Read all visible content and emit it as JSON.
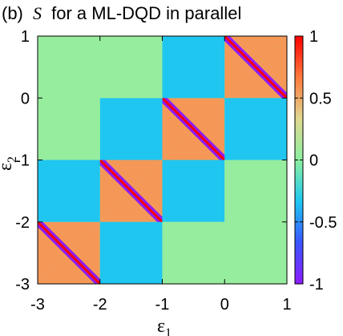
{
  "chart_data": {
    "type": "heatmap",
    "title_prefix": "(b)",
    "title_symbol": "S",
    "title_suffix": "for a ML-DQD in parallel",
    "xlabel": "ε",
    "xlabel_sub": "1",
    "ylabel": "ε",
    "ylabel_sub": "2",
    "xlim": [
      -3,
      1
    ],
    "ylim": [
      -3,
      1
    ],
    "x_ticks": [
      {
        "value": -3,
        "label": "-3"
      },
      {
        "value": -2,
        "label": "-2"
      },
      {
        "value": -1,
        "label": "-1"
      },
      {
        "value": 0,
        "label": "0"
      },
      {
        "value": 1,
        "label": "1"
      }
    ],
    "y_ticks": [
      {
        "value": -3,
        "label": "-3"
      },
      {
        "value": -2,
        "label": "-2"
      },
      {
        "value": -1,
        "label": "-1"
      },
      {
        "value": 0,
        "label": "0"
      },
      {
        "value": 1,
        "label": "1"
      }
    ],
    "colorbar": {
      "range": [
        -1,
        1
      ],
      "ticks": [
        {
          "value": 1,
          "label": "1"
        },
        {
          "value": 0.5,
          "label": "0.5"
        },
        {
          "value": 0,
          "label": "0"
        },
        {
          "value": -0.5,
          "label": "-0.5"
        },
        {
          "value": -1,
          "label": "-1"
        }
      ],
      "palette": [
        "#8c1cff",
        "#3a55ff",
        "#1ec8f0",
        "#8cf0a0",
        "#e0d890",
        "#ff7a3c",
        "#ff0000"
      ]
    },
    "grid": false,
    "levels": {
      "centers": [
        -2.5,
        -1.5,
        -0.5,
        0.5
      ],
      "boundaries": [
        -3,
        -2,
        -1,
        0,
        1
      ],
      "background_value": 0.04,
      "cross_value": -0.34,
      "diagonal_upper_value": 0.56,
      "diagonal_lower_value": 0.56,
      "diagonal_line_value": -1
    },
    "cells": [
      {
        "i": 0,
        "j": 0,
        "x": -2.5,
        "y": -2.5,
        "type": "diagonal"
      },
      {
        "i": 1,
        "j": 1,
        "x": -1.5,
        "y": -1.5,
        "type": "diagonal"
      },
      {
        "i": 2,
        "j": 2,
        "x": -0.5,
        "y": -0.5,
        "type": "diagonal"
      },
      {
        "i": 3,
        "j": 3,
        "x": 0.5,
        "y": 0.5,
        "type": "diagonal"
      },
      {
        "i": 0,
        "j": 1,
        "x": -2.5,
        "y": -1.5,
        "type": "cross"
      },
      {
        "i": 1,
        "j": 0,
        "x": -1.5,
        "y": -2.5,
        "type": "cross"
      },
      {
        "i": 1,
        "j": 2,
        "x": -1.5,
        "y": -0.5,
        "type": "cross"
      },
      {
        "i": 2,
        "j": 1,
        "x": -0.5,
        "y": -1.5,
        "type": "cross"
      },
      {
        "i": 2,
        "j": 3,
        "x": -0.5,
        "y": 0.5,
        "type": "cross"
      },
      {
        "i": 3,
        "j": 2,
        "x": 0.5,
        "y": -0.5,
        "type": "cross"
      },
      {
        "i": 0,
        "j": 3,
        "x": -2.5,
        "y": 0.5,
        "type": "background"
      },
      {
        "i": 3,
        "j": 0,
        "x": 0.5,
        "y": -2.5,
        "type": "background"
      },
      {
        "i": 0,
        "j": 2,
        "x": -2.5,
        "y": -0.5,
        "type": "background"
      },
      {
        "i": 2,
        "j": 0,
        "x": -0.5,
        "y": -2.5,
        "type": "background"
      },
      {
        "i": 1,
        "j": 3,
        "x": -1.5,
        "y": 0.5,
        "type": "background"
      },
      {
        "i": 3,
        "j": 1,
        "x": 0.5,
        "y": -1.5,
        "type": "background"
      }
    ]
  }
}
